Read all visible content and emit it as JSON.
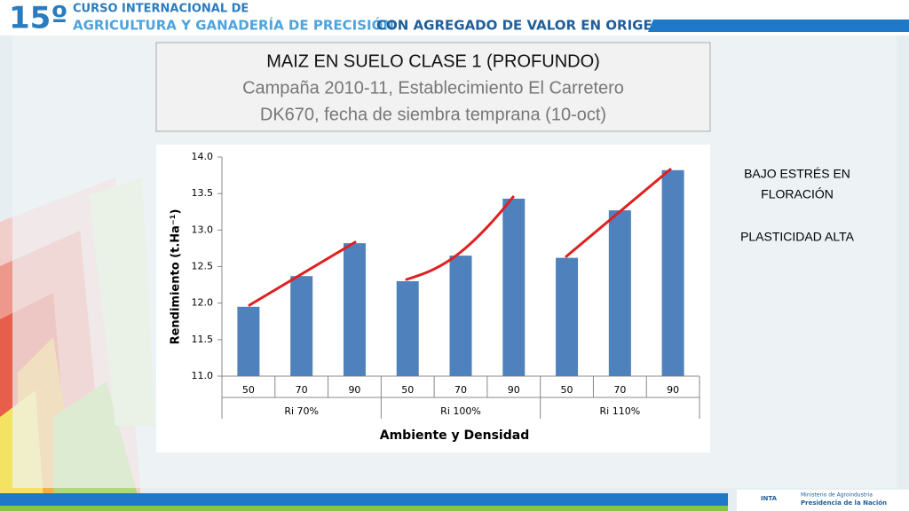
{
  "header": {
    "number": "15º",
    "line1": "CURSO INTERNACIONAL DE",
    "line2a": "AGRICULTURA Y GANADERÍA DE PRECISIÓN",
    "line2b": "CON AGREGADO DE VALOR EN ORIGEN"
  },
  "chart_data": {
    "type": "bar",
    "title": "MAIZ EN SUELO CLASE 1 (PROFUNDO)",
    "subtitle": [
      "Campaña 2010-11, Establecimiento El Carretero",
      "DK670, fecha de siembra temprana (10-oct)"
    ],
    "categories": [
      "50",
      "70",
      "90",
      "50",
      "70",
      "90",
      "50",
      "70",
      "90"
    ],
    "groups": [
      "Ri 70%",
      "Ri 100%",
      "Ri 110%"
    ],
    "values": [
      11.95,
      12.37,
      12.82,
      12.3,
      12.65,
      13.43,
      12.62,
      13.27,
      13.82
    ],
    "color": "#4f81bd",
    "ylim": [
      11,
      14
    ],
    "yticks": [
      {
        "value": 11,
        "label": "11.0"
      },
      {
        "value": 11.5,
        "label": "11.5"
      },
      {
        "value": 12,
        "label": "12.0"
      },
      {
        "value": 12.5,
        "label": "12.5"
      },
      {
        "value": 13,
        "label": "13.0"
      },
      {
        "value": 13.5,
        "label": "13.5"
      },
      {
        "value": 14,
        "label": "14.0"
      }
    ],
    "xlabel": "Ambiente y Densidad",
    "ylabel": "Rendimiento (t.Ha⁻¹)"
  },
  "notes": [
    "BAJO ESTRÉS EN",
    "FLORACIÓN",
    "PLASTICIDAD ALTA"
  ],
  "footer": {
    "logo": "INTA",
    "ministry": "Ministerio de Agroindustria",
    "presidency": "Presidencia de la Nación"
  }
}
